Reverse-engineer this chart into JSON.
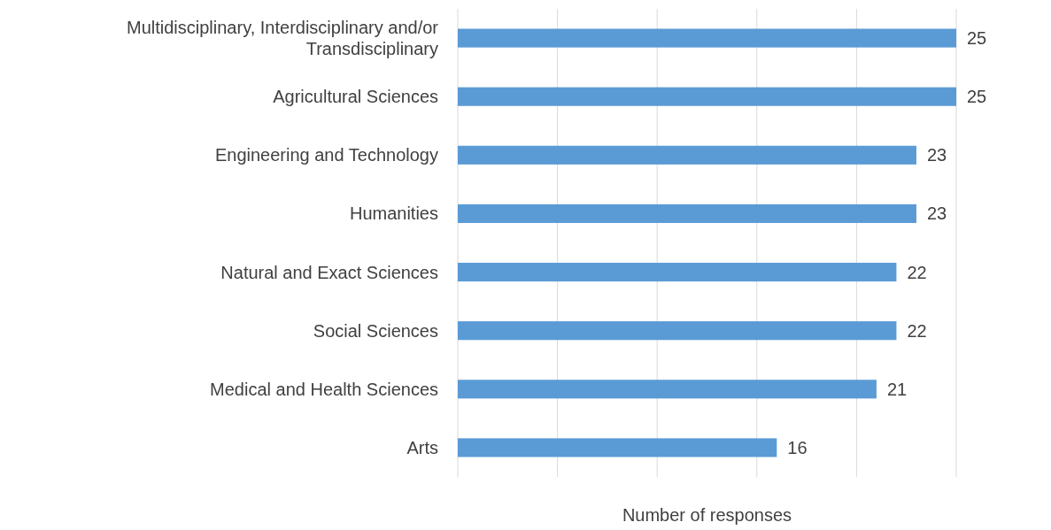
{
  "chart_data": {
    "type": "bar",
    "orientation": "horizontal",
    "xlabel": "Number of responses",
    "categories": [
      "Multidisciplinary, Interdisciplinary and/or Transdisciplinary",
      "Agricultural Sciences",
      "Engineering and Technology",
      "Humanities",
      "Natural and Exact Sciences",
      "Social Sciences",
      "Medical and Health Sciences",
      "Arts"
    ],
    "values": [
      25,
      25,
      23,
      23,
      22,
      22,
      21,
      16
    ],
    "color": "#5b9bd5",
    "xlim": [
      0,
      25
    ],
    "xticks": [
      {
        "value": 0,
        "label": null
      },
      {
        "value": 5,
        "label": null
      },
      {
        "value": 10,
        "label": null
      },
      {
        "value": 15,
        "label": null
      },
      {
        "value": 20,
        "label": null
      },
      {
        "value": 25,
        "label": null
      }
    ],
    "grid": "x",
    "tick_labels": "y",
    "data_labels": true
  }
}
